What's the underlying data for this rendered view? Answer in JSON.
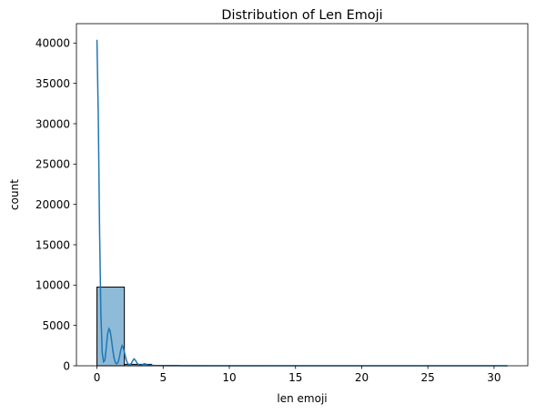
{
  "chart_data": {
    "type": "histogram",
    "title": "Distribution of Len Emoji",
    "xlabel": "len emoji",
    "ylabel": "count",
    "xlim": [
      -1.55,
      32.55
    ],
    "ylim": [
      0,
      42400
    ],
    "xticks": [
      0,
      5,
      10,
      15,
      20,
      25,
      30
    ],
    "yticks": [
      0,
      5000,
      10000,
      15000,
      20000,
      25000,
      30000,
      35000,
      40000
    ],
    "bins": [
      {
        "x0": 0.0,
        "x1": 2.07,
        "count": 9750
      },
      {
        "x0": 2.07,
        "x1": 4.13,
        "count": 180
      },
      {
        "x0": 4.13,
        "x1": 6.2,
        "count": 35
      },
      {
        "x0": 6.2,
        "x1": 8.27,
        "count": 10
      },
      {
        "x0": 8.27,
        "x1": 10.33,
        "count": 4
      },
      {
        "x0": 10.33,
        "x1": 12.4,
        "count": 2
      },
      {
        "x0": 12.4,
        "x1": 14.47,
        "count": 1
      },
      {
        "x0": 14.47,
        "x1": 16.53,
        "count": 1
      },
      {
        "x0": 16.53,
        "x1": 18.6,
        "count": 0
      },
      {
        "x0": 18.6,
        "x1": 20.67,
        "count": 0
      },
      {
        "x0": 20.67,
        "x1": 22.73,
        "count": 0
      },
      {
        "x0": 22.73,
        "x1": 24.8,
        "count": 0
      },
      {
        "x0": 24.8,
        "x1": 26.87,
        "count": 0
      },
      {
        "x0": 26.87,
        "x1": 28.93,
        "count": 0
      },
      {
        "x0": 28.93,
        "x1": 31.0,
        "count": 1
      }
    ],
    "kde": {
      "x": [
        0,
        0.1,
        0.2,
        0.3,
        0.4,
        0.5,
        0.6,
        0.7,
        0.8,
        0.9,
        1.0,
        1.1,
        1.2,
        1.3,
        1.4,
        1.5,
        1.6,
        1.7,
        1.8,
        1.9,
        2.0,
        2.1,
        2.2,
        2.3,
        2.4,
        2.5,
        2.6,
        2.7,
        2.8,
        2.9,
        3.0,
        3.1,
        3.2,
        3.3,
        3.4,
        3.5,
        3.6,
        3.7,
        3.8,
        3.9,
        4.0,
        4.1,
        4.2,
        4.3,
        4.5,
        5.0,
        5.5,
        6.0,
        7.0,
        8.0,
        10.0,
        15.0,
        20.0,
        25.0,
        31.0
      ],
      "y": [
        40400,
        31000,
        16500,
        6200,
        1600,
        500,
        700,
        2200,
        3900,
        4600,
        4300,
        3200,
        1900,
        900,
        350,
        250,
        450,
        1100,
        2000,
        2500,
        2200,
        1500,
        800,
        350,
        150,
        150,
        300,
        600,
        850,
        700,
        400,
        200,
        100,
        80,
        120,
        200,
        250,
        200,
        120,
        60,
        60,
        80,
        60,
        40,
        25,
        20,
        15,
        10,
        6,
        3,
        2,
        1,
        1,
        1,
        1
      ]
    },
    "bar_color": "#1f77b4",
    "bar_alpha": 0.5,
    "line_color": "#1f77b4",
    "legend": "none",
    "grid": false
  }
}
